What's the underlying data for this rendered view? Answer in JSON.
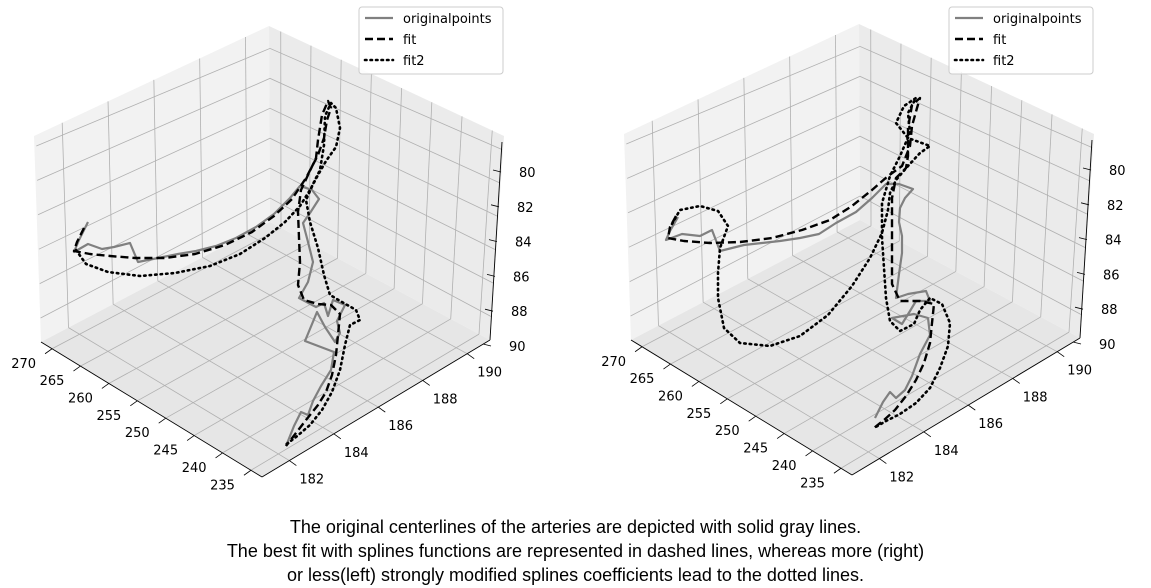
{
  "chart_data": [
    {
      "type": "line3d",
      "panel": "left",
      "xaxis": {
        "ticks": [
          270,
          265,
          260,
          255,
          250,
          245,
          240,
          235
        ]
      },
      "yaxis": {
        "ticks": [
          182,
          184,
          186,
          188,
          190
        ]
      },
      "zaxis": {
        "ticks": [
          80,
          82,
          84,
          86,
          88,
          90
        ],
        "inverted": true
      },
      "grid": true,
      "legend": {
        "position": "top-right",
        "entries": [
          "originalpoints",
          "fit",
          "fit2"
        ]
      },
      "series": [
        {
          "name": "originalpoints",
          "style": "solid",
          "color": "#808080"
        },
        {
          "name": "fit",
          "style": "dashed",
          "color": "#000000"
        },
        {
          "name": "fit2",
          "style": "dotted",
          "color": "#000000"
        }
      ]
    },
    {
      "type": "line3d",
      "panel": "right",
      "xaxis": {
        "ticks": [
          270,
          265,
          260,
          255,
          250,
          245,
          240,
          235
        ]
      },
      "yaxis": {
        "ticks": [
          182,
          184,
          186,
          188,
          190
        ]
      },
      "zaxis": {
        "ticks": [
          80,
          82,
          84,
          86,
          88,
          90
        ],
        "inverted": true
      },
      "grid": true,
      "legend": {
        "position": "top-right",
        "entries": [
          "originalpoints",
          "fit",
          "fit2"
        ]
      },
      "series": [
        {
          "name": "originalpoints",
          "style": "solid",
          "color": "#808080"
        },
        {
          "name": "fit",
          "style": "dashed",
          "color": "#000000"
        },
        {
          "name": "fit2",
          "style": "dotted",
          "color": "#000000"
        }
      ]
    }
  ],
  "caption": {
    "line1": "The original centerlines of the arteries are depicted with solid gray lines.",
    "line2": "The best fit with splines functions are represented in dashed lines, whereas more (right)",
    "line3": "or less(left) strongly modified splines coefficients lead to the dotted lines."
  }
}
